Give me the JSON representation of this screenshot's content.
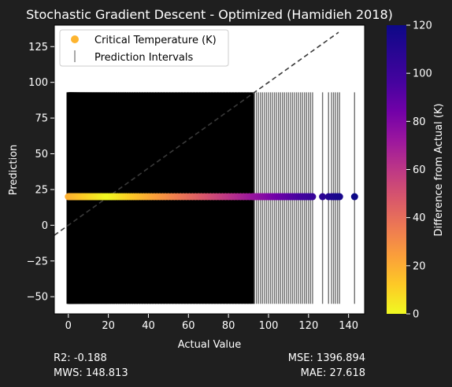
{
  "chart_data": {
    "type": "scatter",
    "title": "Stochastic Gradient Descent - Optimized (Hamidieh 2018)",
    "xlabel": "Actual Value",
    "ylabel": "Prediction",
    "xlim": [
      -7,
      148
    ],
    "ylim": [
      -62,
      140
    ],
    "xticks": [
      0,
      20,
      40,
      60,
      80,
      100,
      120,
      140
    ],
    "yticks": [
      -50,
      -25,
      0,
      25,
      50,
      75,
      100,
      125
    ],
    "grid": false,
    "legend": {
      "placement": "top-left",
      "entries": [
        {
          "label": "Critical Temperature (K)",
          "marker": "circle",
          "color": "#fdb42f"
        },
        {
          "label": "Prediction Intervals",
          "marker": "vertical-line",
          "color": "#8c8c8c"
        }
      ]
    },
    "reference_line": {
      "style": "dashed",
      "color": "#3a3a3a",
      "x": [
        -7,
        135
      ],
      "y": [
        -7,
        135
      ]
    },
    "prediction_value": 20,
    "interval": {
      "lower": -55,
      "upper": 93
    },
    "points_x": [
      0.0,
      0.3,
      0.6,
      0.9,
      1.2,
      1.5,
      1.8,
      2.1,
      2.5,
      2.9,
      3.3,
      3.7,
      4.2,
      4.7,
      5.2,
      5.8,
      6.4,
      7.0,
      7.6,
      8.2,
      8.9,
      9.6,
      10.3,
      11.0,
      11.8,
      12.6,
      13.4,
      14.2,
      15.0,
      15.9,
      16.8,
      17.7,
      18.6,
      19.5,
      20.5,
      21.5,
      22.5,
      23.5,
      24.6,
      25.7,
      26.8,
      27.9,
      29.0,
      30.2,
      31.4,
      32.6,
      33.8,
      35.0,
      36.3,
      37.6,
      38.9,
      40.2,
      41.5,
      42.9,
      44.3,
      45.7,
      47.1,
      48.5,
      50.0,
      51.5,
      53.0,
      54.5,
      56.0,
      57.5,
      59.0,
      60.5,
      62.0,
      63.5,
      65.0,
      66.5,
      68.0,
      69.5,
      71.0,
      72.5,
      74.0,
      75.5,
      77.0,
      78.5,
      80.0,
      81.5,
      83.0,
      84.5,
      86.0,
      87.5,
      89.0,
      90.5,
      92.0,
      93.0,
      94.0,
      95.0,
      96.0,
      97.0,
      98.0,
      99.0,
      100.0,
      101.0,
      102.0,
      103.0,
      104.0,
      105.0,
      106.0,
      107.0,
      108.0,
      109.0,
      110.0,
      111.0,
      112.0,
      113.0,
      114.0,
      115.0,
      116.0,
      117.0,
      118.0,
      119.0,
      120.0,
      121.0,
      122.0,
      127.0,
      130.0,
      131.5,
      132.5,
      133.5,
      134.5,
      135.5,
      143.0
    ],
    "colorbar": {
      "label": "Difference from Actual (K)",
      "range": [
        0,
        120
      ],
      "ticks": [
        0,
        20,
        40,
        60,
        80,
        100,
        120
      ],
      "colormap": "plasma_r"
    },
    "metrics": {
      "r2": "R2: -0.188",
      "mws": "MWS: 148.813",
      "mse": "MSE: 1396.894",
      "mae": "MAE: 27.618"
    }
  }
}
